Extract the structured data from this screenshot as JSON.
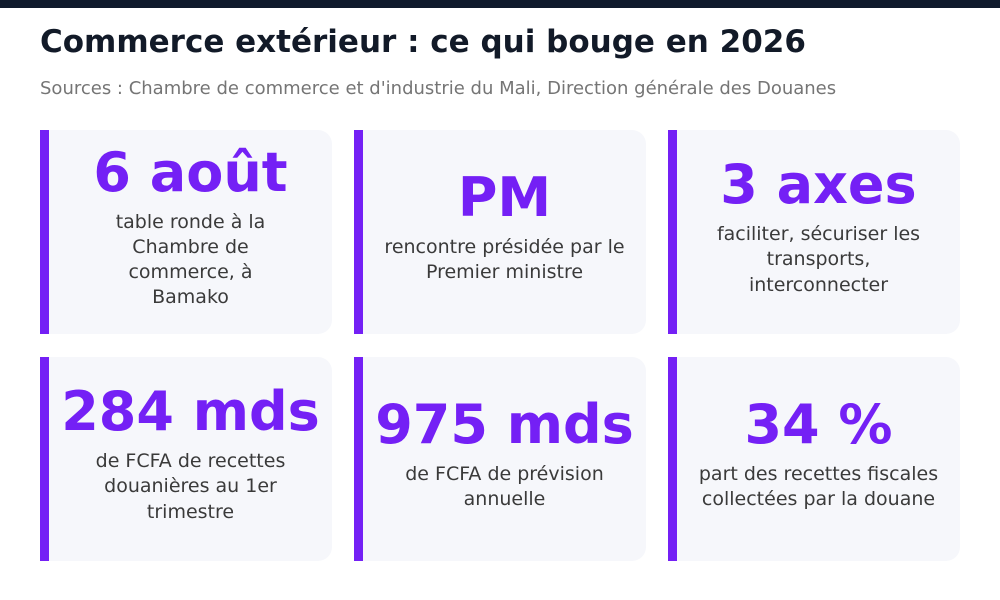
{
  "header": {
    "title": "Commerce extérieur : ce qui bouge en 2026",
    "subtitle": "Sources : Chambre de commerce et d'industrie du Mali, Direction générale des Douanes"
  },
  "colors": {
    "accent": "#7420f5",
    "title": "#121a28",
    "card_bg": "#f6f7fb",
    "top_bar": "#0f1a2c"
  },
  "cards": [
    {
      "value": "6 août",
      "description": "table ronde à la Chambre de commerce, à Bamako"
    },
    {
      "value": "PM",
      "description": "rencontre présidée par le Premier ministre"
    },
    {
      "value": "3 axes",
      "description": "faciliter, sécuriser les transports, interconnecter"
    },
    {
      "value": "284 mds",
      "description": "de FCFA de recettes douanières au 1er trimestre"
    },
    {
      "value": "975 mds",
      "description": "de FCFA de prévision annuelle"
    },
    {
      "value": "34 %",
      "description": "part des recettes fiscales collectées par la douane"
    }
  ]
}
